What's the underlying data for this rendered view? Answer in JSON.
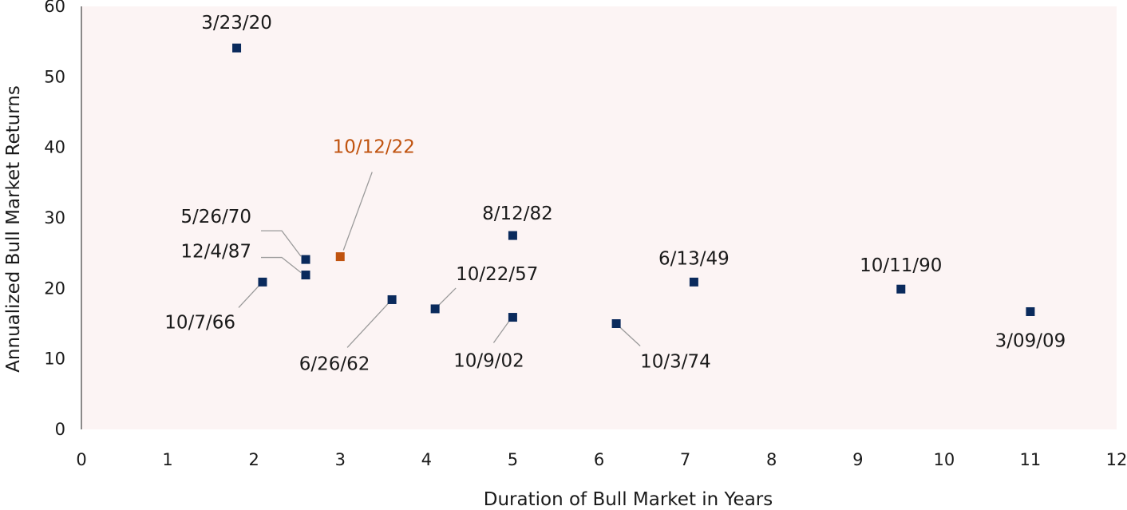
{
  "chart_data": {
    "type": "scatter",
    "xlabel": "Duration of Bull Market in Years",
    "ylabel": "Annualized Bull Market Returns",
    "xlim": [
      0,
      12
    ],
    "ylim": [
      0,
      60
    ],
    "x_ticks": [
      "0",
      "1",
      "2",
      "3",
      "4",
      "5",
      "6",
      "7",
      "8",
      "9",
      "10",
      "11",
      "12"
    ],
    "y_ticks": [
      "0",
      "10",
      "20",
      "30",
      "40",
      "50",
      "60"
    ],
    "grid": false,
    "plot_background": "#fcf4f4",
    "marker_color": "#0a2a5c",
    "highlight_color": "#c0530f",
    "points": [
      {
        "label": "3/23/20",
        "x": 1.8,
        "y": 54.1
      },
      {
        "label": "10/12/22",
        "x": 3.0,
        "y": 24.5,
        "highlight": true
      },
      {
        "label": "5/26/70",
        "x": 2.6,
        "y": 24.1
      },
      {
        "label": "12/4/87",
        "x": 2.6,
        "y": 21.9
      },
      {
        "label": "10/7/66",
        "x": 2.1,
        "y": 20.9
      },
      {
        "label": "8/12/82",
        "x": 5.0,
        "y": 27.5
      },
      {
        "label": "10/22/57",
        "x": 4.1,
        "y": 17.1
      },
      {
        "label": "6/26/62",
        "x": 3.6,
        "y": 18.4
      },
      {
        "label": "10/9/02",
        "x": 5.0,
        "y": 15.9
      },
      {
        "label": "6/13/49",
        "x": 7.1,
        "y": 20.9
      },
      {
        "label": "10/3/74",
        "x": 6.2,
        "y": 15.0
      },
      {
        "label": "10/11/90",
        "x": 9.5,
        "y": 19.9
      },
      {
        "label": "3/09/09",
        "x": 11.0,
        "y": 16.7
      }
    ]
  }
}
